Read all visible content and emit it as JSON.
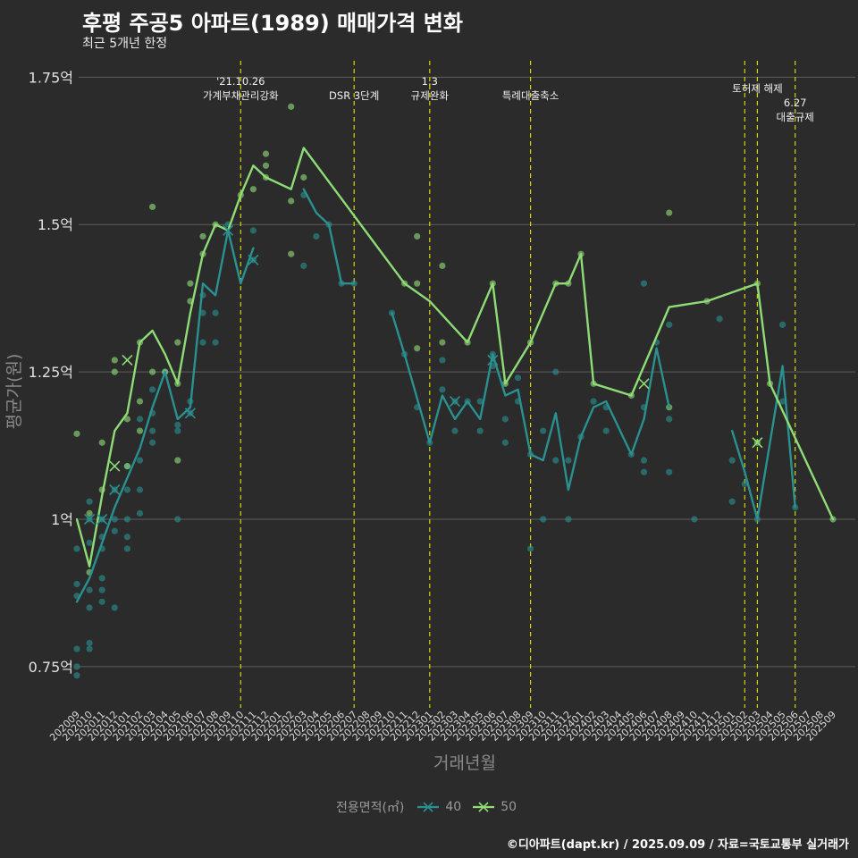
{
  "chart_data": {
    "type": "line",
    "title": "후평 주공5 아파트(1989) 매매가격 변화",
    "subtitle": "최근 5개년 한정",
    "xlabel": "거래년월",
    "ylabel": "평균가(원)",
    "caption": "©디아파트(dapt.kr) / 2025.09.09 / 자료=국토교통부 실거래가",
    "ylim": [
      0.68,
      1.79
    ],
    "yticks": [
      {
        "value": 0.75,
        "label": "0.75억"
      },
      {
        "value": 1.0,
        "label": "1억"
      },
      {
        "value": 1.25,
        "label": "1.25억"
      },
      {
        "value": 1.5,
        "label": "1.5억"
      },
      {
        "value": 1.75,
        "label": "1.75억"
      }
    ],
    "categories": [
      "202009",
      "202010",
      "202011",
      "202012",
      "202101",
      "202102",
      "202103",
      "202104",
      "202105",
      "202106",
      "202107",
      "202108",
      "202109",
      "202110",
      "202111",
      "202112",
      "202201",
      "202202",
      "202203",
      "202204",
      "202205",
      "202206",
      "202207",
      "202208",
      "202209",
      "202210",
      "202211",
      "202212",
      "202301",
      "202302",
      "202303",
      "202304",
      "202305",
      "202306",
      "202307",
      "202308",
      "202309",
      "202310",
      "202311",
      "202312",
      "202401",
      "202402",
      "202403",
      "202404",
      "202405",
      "202406",
      "202407",
      "202408",
      "202409",
      "202410",
      "202411",
      "202412",
      "202501",
      "202502",
      "202503",
      "202504",
      "202505",
      "202506",
      "202507",
      "202508",
      "202509"
    ],
    "legend": {
      "title": "전용면적(㎡)",
      "items": [
        {
          "name": "40",
          "color": "#2a9090"
        },
        {
          "name": "50",
          "color": "#8fdc77"
        }
      ]
    },
    "events": [
      {
        "month": "202110",
        "lines": [
          "'21.10.26",
          "가계부채관리강화"
        ],
        "row": 0
      },
      {
        "month": "202207",
        "lines": [
          "DSR 3단계"
        ],
        "row": 2
      },
      {
        "month": "202301",
        "lines": [
          "1.3",
          "규제완화"
        ],
        "row": 0
      },
      {
        "month": "202309",
        "lines": [
          "특례대출축소"
        ],
        "row": 2
      },
      {
        "month": "202502",
        "lines": [],
        "row": 0
      },
      {
        "month": "202503",
        "lines": [
          "토허제 해제"
        ],
        "row": 1
      },
      {
        "month": "202506",
        "lines": [
          "6.27",
          "대출규제"
        ],
        "row": 3
      }
    ],
    "series": [
      {
        "name": "40",
        "color": "#2a9090",
        "segments": [
          [
            [
              "202009",
              0.86
            ],
            [
              "202010",
              0.9
            ],
            [
              "202011",
              0.96
            ],
            [
              "202012",
              1.02
            ],
            [
              "202101",
              1.07
            ],
            [
              "202102",
              1.12
            ],
            [
              "202103",
              1.19
            ],
            [
              "202104",
              1.25
            ],
            [
              "202105",
              1.17
            ],
            [
              "202106",
              1.19
            ],
            [
              "202107",
              1.4
            ],
            [
              "202108",
              1.38
            ],
            [
              "202109",
              1.49
            ],
            [
              "202110",
              1.4
            ],
            [
              "202111",
              1.46
            ]
          ],
          [
            [
              "202203",
              1.56
            ],
            [
              "202204",
              1.52
            ],
            [
              "202205",
              1.5
            ],
            [
              "202206",
              1.4
            ],
            [
              "202207",
              1.4
            ]
          ],
          [
            [
              "202210",
              1.35
            ],
            [
              "202211",
              1.28
            ],
            [
              "202301",
              1.13
            ],
            [
              "202302",
              1.21
            ],
            [
              "202303",
              1.17
            ],
            [
              "202304",
              1.2
            ],
            [
              "202305",
              1.17
            ],
            [
              "202306",
              1.28
            ],
            [
              "202307",
              1.21
            ],
            [
              "202308",
              1.22
            ],
            [
              "202309",
              1.11
            ],
            [
              "202310",
              1.1
            ],
            [
              "202311",
              1.18
            ],
            [
              "202312",
              1.05
            ],
            [
              "202401",
              1.14
            ],
            [
              "202402",
              1.19
            ],
            [
              "202403",
              1.2
            ],
            [
              "202405",
              1.11
            ],
            [
              "202406",
              1.17
            ],
            [
              "202407",
              1.29
            ],
            [
              "202408",
              1.19
            ]
          ],
          [
            [
              "202501",
              1.15
            ],
            [
              "202502",
              1.08
            ],
            [
              "202503",
              1.0
            ],
            [
              "202505",
              1.26
            ],
            [
              "202506",
              1.02
            ]
          ]
        ],
        "crosses": [
          [
            "202010",
            1.0
          ],
          [
            "202011",
            1.0
          ],
          [
            "202012",
            1.05
          ],
          [
            "202106",
            1.18
          ],
          [
            "202109",
            1.49
          ],
          [
            "202111",
            1.44
          ],
          [
            "202303",
            1.2
          ],
          [
            "202306",
            1.27
          ]
        ],
        "points": [
          [
            "202009",
            0.735
          ],
          [
            "202009",
            0.75
          ],
          [
            "202009",
            0.78
          ],
          [
            "202009",
            0.87
          ],
          [
            "202009",
            0.89
          ],
          [
            "202009",
            0.95
          ],
          [
            "202010",
            0.78
          ],
          [
            "202010",
            0.79
          ],
          [
            "202010",
            0.85
          ],
          [
            "202010",
            0.88
          ],
          [
            "202010",
            0.96
          ],
          [
            "202010",
            1.0
          ],
          [
            "202010",
            1.03
          ],
          [
            "202011",
            0.86
          ],
          [
            "202011",
            0.88
          ],
          [
            "202011",
            0.9
          ],
          [
            "202011",
            0.95
          ],
          [
            "202011",
            0.97
          ],
          [
            "202011",
            1.0
          ],
          [
            "202012",
            0.85
          ],
          [
            "202012",
            0.98
          ],
          [
            "202012",
            1.0
          ],
          [
            "202012",
            1.05
          ],
          [
            "202101",
            0.95
          ],
          [
            "202101",
            0.97
          ],
          [
            "202101",
            1.0
          ],
          [
            "202101",
            1.05
          ],
          [
            "202101",
            1.09
          ],
          [
            "202102",
            1.01
          ],
          [
            "202102",
            1.05
          ],
          [
            "202102",
            1.1
          ],
          [
            "202102",
            1.17
          ],
          [
            "202103",
            1.13
          ],
          [
            "202103",
            1.15
          ],
          [
            "202103",
            1.18
          ],
          [
            "202103",
            1.22
          ],
          [
            "202104",
            1.25
          ],
          [
            "202105",
            1.0
          ],
          [
            "202105",
            1.15
          ],
          [
            "202105",
            1.16
          ],
          [
            "202106",
            1.18
          ],
          [
            "202106",
            1.2
          ],
          [
            "202107",
            1.3
          ],
          [
            "202107",
            1.35
          ],
          [
            "202107",
            1.38
          ],
          [
            "202108",
            1.3
          ],
          [
            "202108",
            1.35
          ],
          [
            "202109",
            1.5
          ],
          [
            "202111",
            1.44
          ],
          [
            "202111",
            1.49
          ],
          [
            "202203",
            1.43
          ],
          [
            "202203",
            1.55
          ],
          [
            "202204",
            1.48
          ],
          [
            "202205",
            1.5
          ],
          [
            "202206",
            1.4
          ],
          [
            "202207",
            1.4
          ],
          [
            "202210",
            1.35
          ],
          [
            "202211",
            1.28
          ],
          [
            "202212",
            1.19
          ],
          [
            "202301",
            1.13
          ],
          [
            "202302",
            1.22
          ],
          [
            "202302",
            1.27
          ],
          [
            "202303",
            1.15
          ],
          [
            "202303",
            1.2
          ],
          [
            "202304",
            1.2
          ],
          [
            "202305",
            1.15
          ],
          [
            "202305",
            1.2
          ],
          [
            "202306",
            1.26
          ],
          [
            "202306",
            1.28
          ],
          [
            "202307",
            1.13
          ],
          [
            "202307",
            1.17
          ],
          [
            "202308",
            1.2
          ],
          [
            "202308",
            1.24
          ],
          [
            "202309",
            0.95
          ],
          [
            "202309",
            1.11
          ],
          [
            "202310",
            1.0
          ],
          [
            "202310",
            1.15
          ],
          [
            "202311",
            1.1
          ],
          [
            "202311",
            1.25
          ],
          [
            "202312",
            1.0
          ],
          [
            "202312",
            1.1
          ],
          [
            "202401",
            1.14
          ],
          [
            "202402",
            1.2
          ],
          [
            "202403",
            1.15
          ],
          [
            "202403",
            1.19
          ],
          [
            "202405",
            1.11
          ],
          [
            "202406",
            1.08
          ],
          [
            "202406",
            1.1
          ],
          [
            "202406",
            1.19
          ],
          [
            "202406",
            1.4
          ],
          [
            "202407",
            1.3
          ],
          [
            "202408",
            1.08
          ],
          [
            "202408",
            1.17
          ],
          [
            "202408",
            1.33
          ],
          [
            "202410",
            1.0
          ],
          [
            "202412",
            1.34
          ],
          [
            "202501",
            1.03
          ],
          [
            "202501",
            1.1
          ],
          [
            "202502",
            1.06
          ],
          [
            "202503",
            1.0
          ],
          [
            "202505",
            1.2
          ],
          [
            "202505",
            1.33
          ],
          [
            "202506",
            1.02
          ]
        ]
      },
      {
        "name": "50",
        "color": "#8fdc77",
        "segments": [
          [
            [
              "202009",
              1.0
            ],
            [
              "202010",
              0.92
            ],
            [
              "202011",
              1.04
            ],
            [
              "202012",
              1.15
            ],
            [
              "202101",
              1.18
            ],
            [
              "202102",
              1.3
            ],
            [
              "202103",
              1.32
            ],
            [
              "202104",
              1.28
            ],
            [
              "202105",
              1.23
            ],
            [
              "202106",
              1.35
            ],
            [
              "202107",
              1.45
            ],
            [
              "202108",
              1.5
            ],
            [
              "202109",
              1.49
            ],
            [
              "202110",
              1.55
            ],
            [
              "202111",
              1.6
            ],
            [
              "202112",
              1.58
            ],
            [
              "202202",
              1.56
            ],
            [
              "202203",
              1.63
            ],
            [
              "202211",
              1.4
            ],
            [
              "202301",
              1.37
            ],
            [
              "202304",
              1.3
            ],
            [
              "202306",
              1.4
            ],
            [
              "202307",
              1.23
            ],
            [
              "202309",
              1.3
            ],
            [
              "202311",
              1.4
            ],
            [
              "202312",
              1.4
            ],
            [
              "202401",
              1.45
            ],
            [
              "202402",
              1.23
            ],
            [
              "202405",
              1.21
            ],
            [
              "202408",
              1.36
            ],
            [
              "202411",
              1.37
            ],
            [
              "202503",
              1.4
            ],
            [
              "202504",
              1.23
            ],
            [
              "202509",
              1.0
            ]
          ]
        ],
        "crosses": [
          [
            "202012",
            1.09
          ],
          [
            "202101",
            1.27
          ],
          [
            "202406",
            1.23
          ],
          [
            "202503",
            1.13
          ]
        ],
        "points": [
          [
            "202009",
            1.145
          ],
          [
            "202010",
            0.91
          ],
          [
            "202010",
            1.01
          ],
          [
            "202011",
            1.05
          ],
          [
            "202011",
            1.13
          ],
          [
            "202012",
            1.25
          ],
          [
            "202012",
            1.27
          ],
          [
            "202101",
            1.09
          ],
          [
            "202101",
            1.17
          ],
          [
            "202102",
            1.15
          ],
          [
            "202102",
            1.2
          ],
          [
            "202102",
            1.3
          ],
          [
            "202103",
            1.25
          ],
          [
            "202103",
            1.53
          ],
          [
            "202104",
            1.25
          ],
          [
            "202105",
            1.1
          ],
          [
            "202105",
            1.23
          ],
          [
            "202105",
            1.3
          ],
          [
            "202106",
            1.4
          ],
          [
            "202106",
            1.37
          ],
          [
            "202107",
            1.45
          ],
          [
            "202107",
            1.48
          ],
          [
            "202108",
            1.5
          ],
          [
            "202110",
            1.55
          ],
          [
            "202111",
            1.56
          ],
          [
            "202112",
            1.58
          ],
          [
            "202112",
            1.6
          ],
          [
            "202112",
            1.62
          ],
          [
            "202202",
            1.45
          ],
          [
            "202202",
            1.54
          ],
          [
            "202202",
            1.7
          ],
          [
            "202203",
            1.58
          ],
          [
            "202211",
            1.4
          ],
          [
            "202212",
            1.29
          ],
          [
            "202212",
            1.4
          ],
          [
            "202212",
            1.48
          ],
          [
            "202302",
            1.3
          ],
          [
            "202302",
            1.43
          ],
          [
            "202304",
            1.3
          ],
          [
            "202306",
            1.4
          ],
          [
            "202307",
            1.23
          ],
          [
            "202309",
            1.3
          ],
          [
            "202311",
            1.4
          ],
          [
            "202312",
            1.4
          ],
          [
            "202401",
            1.45
          ],
          [
            "202402",
            1.23
          ],
          [
            "202405",
            1.21
          ],
          [
            "202408",
            1.19
          ],
          [
            "202408",
            1.52
          ],
          [
            "202411",
            1.37
          ],
          [
            "202503",
            1.4
          ],
          [
            "202503",
            1.13
          ],
          [
            "202504",
            1.23
          ],
          [
            "202509",
            1.0
          ]
        ]
      }
    ]
  }
}
